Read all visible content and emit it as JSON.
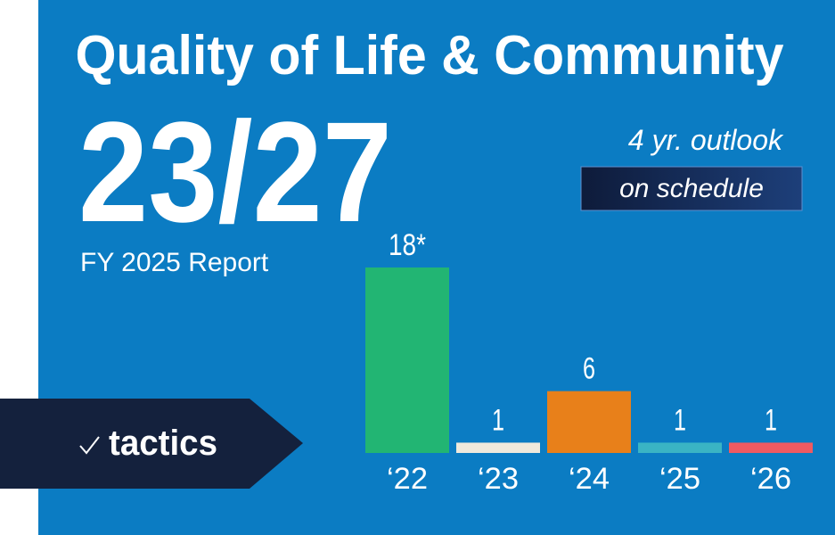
{
  "chart_data": {
    "type": "bar",
    "title": "Quality of Life & Community",
    "annotations": [
      "23/27",
      "FY 2025 Report",
      "4 yr. outlook",
      "on schedule",
      "tactics"
    ],
    "categories": [
      "‘22",
      "‘23",
      "‘24",
      "‘25",
      "‘26"
    ],
    "values": [
      18,
      1,
      6,
      1,
      1
    ],
    "value_labels": [
      "18*",
      "1",
      "6",
      "1",
      "1"
    ],
    "colors": [
      "#22b573",
      "#efe9dc",
      "#e8801a",
      "#3ab4c4",
      "#ef5a61"
    ]
  }
}
